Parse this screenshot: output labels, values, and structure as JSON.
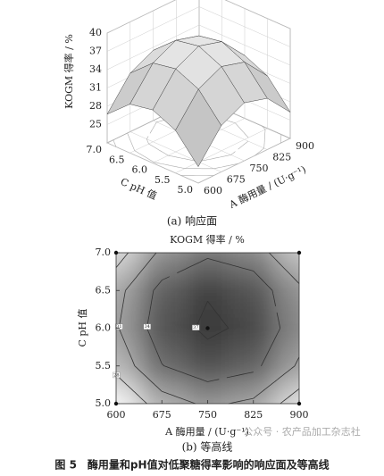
{
  "chart_data": [
    {
      "type": "surface3d",
      "caption": "(a) 响应面",
      "zlabel": "KOGM 得率 / %",
      "xlabel": "A 酶用量 / (U·g⁻¹)",
      "ylabel": "C pH 值",
      "x": [
        600,
        675,
        750,
        825,
        900
      ],
      "y": [
        5,
        5.5,
        6,
        6.5,
        7
      ],
      "z": [
        [
          24.7,
          29.6,
          31.5,
          30.4,
          26.3
        ],
        [
          29.0,
          33.9,
          35.8,
          34.7,
          30.6
        ],
        [
          30.7,
          35.6,
          37.5,
          36.4,
          32.3
        ],
        [
          30.0,
          34.9,
          36.8,
          35.7,
          31.6
        ],
        [
          26.7,
          31.6,
          33.5,
          32.4,
          28.3
        ]
      ],
      "xlim": [
        600,
        900
      ],
      "xticks": [
        600,
        675,
        750,
        825,
        900
      ],
      "ylim": [
        5,
        7
      ],
      "yticks": [
        {
          "value": 5,
          "label": "5.0"
        },
        {
          "value": 5.5,
          "label": "5.5"
        },
        {
          "value": 6,
          "label": "6.0"
        },
        {
          "value": 6.5,
          "label": "6.5"
        },
        {
          "value": 7,
          "label": "7.0"
        }
      ],
      "zlim": [
        22,
        40
      ],
      "zticks": [
        25,
        28,
        31,
        34,
        37,
        40
      ],
      "contour_levels": [
        28,
        31,
        34,
        37
      ]
    },
    {
      "type": "contour",
      "title": "KOGM 得率 / %",
      "caption": "(b) 等高线",
      "xlabel": "A 酶用量 / (U·g⁻¹)",
      "ylabel": "C pH 值",
      "x": [
        600,
        675,
        750,
        825,
        900
      ],
      "y": [
        5,
        5.5,
        6,
        6.5,
        7
      ],
      "z": [
        [
          24.7,
          29.6,
          31.5,
          30.4,
          26.3
        ],
        [
          29.0,
          33.9,
          35.8,
          34.7,
          30.6
        ],
        [
          30.7,
          35.6,
          37.5,
          36.4,
          32.3
        ],
        [
          30.0,
          34.9,
          36.8,
          35.7,
          31.6
        ],
        [
          26.7,
          31.6,
          33.5,
          32.4,
          28.3
        ]
      ],
      "xlim": [
        600,
        900
      ],
      "xticks": [
        600,
        675,
        750,
        825,
        900
      ],
      "ylim": [
        5,
        7
      ],
      "yticks": [
        {
          "value": 5,
          "label": "5.0"
        },
        {
          "value": 5.5,
          "label": "5.5"
        },
        {
          "value": 6,
          "label": "6.0"
        },
        {
          "value": 6.5,
          "label": "6.5"
        },
        {
          "value": 7,
          "label": "7.0"
        }
      ],
      "contour_levels": [
        28,
        31,
        34,
        37
      ],
      "points": {
        "x": [
          600,
          600,
          900,
          900,
          750
        ],
        "y": [
          5,
          7,
          5,
          7,
          6
        ]
      }
    }
  ],
  "figure_caption": "图 5　酶用量和pH值对低聚糖得率影响的响应面及等高线",
  "watermark": "公众号 · 农产品加工杂志社"
}
